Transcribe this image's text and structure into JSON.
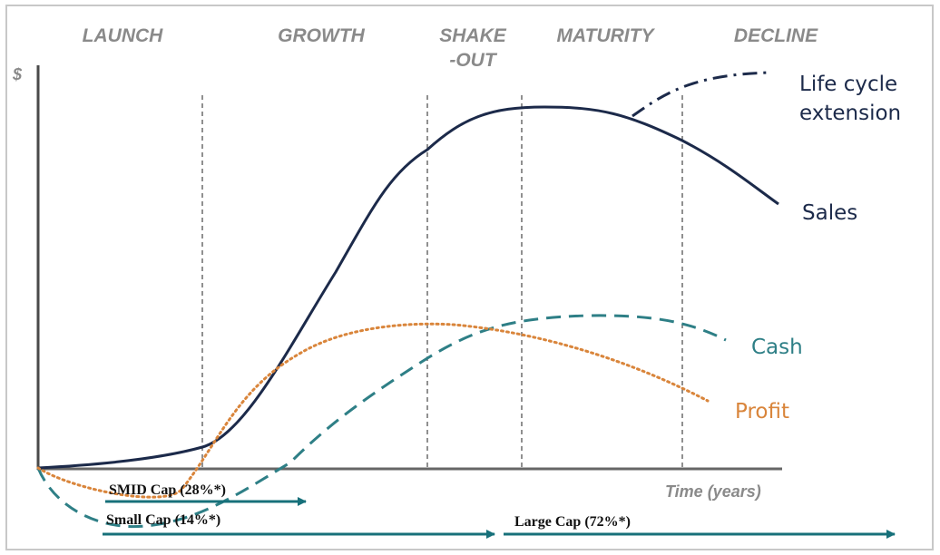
{
  "stages": [
    "LAUNCH",
    "GROWTH",
    "SHAKE",
    "-OUT",
    "MATURITY",
    "DECLINE"
  ],
  "y_axis_label": "$",
  "x_axis_label": "Time (years)",
  "curves": {
    "life_cycle_extension": [
      "Life cycle",
      "extension"
    ],
    "sales": "Sales",
    "cash": "Cash",
    "profit": "Profit"
  },
  "caps": {
    "smid": "SMID Cap (28%*)",
    "small": "Small Cap (14%*)",
    "large": "Large Cap (72%*)"
  },
  "colors": {
    "sales": "#1c2a4a",
    "cash": "#2e7f86",
    "profit": "#d9853b",
    "arrow": "#17707a",
    "stage_text": "#8a8a8a"
  }
}
